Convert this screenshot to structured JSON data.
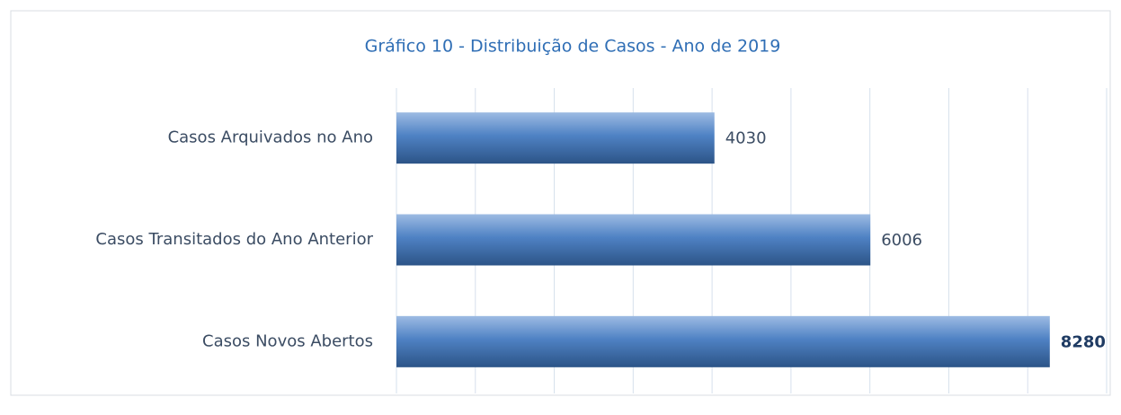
{
  "chart_data": {
    "type": "bar",
    "orientation": "horizontal",
    "title": "Gráfico 10 - Distribuição de Casos - Ano de 2019",
    "categories": [
      "Casos Arquivados no Ano",
      "Casos Transitados do Ano Anterior",
      "Casos Novos Abertos"
    ],
    "values": [
      4030,
      6006,
      8280
    ],
    "color": "#4a78b8",
    "xlim": [
      0,
      9000
    ],
    "xticks": [
      0,
      1000,
      2000,
      3000,
      4000,
      5000,
      6000,
      7000,
      8000,
      9000
    ],
    "grid": true
  }
}
